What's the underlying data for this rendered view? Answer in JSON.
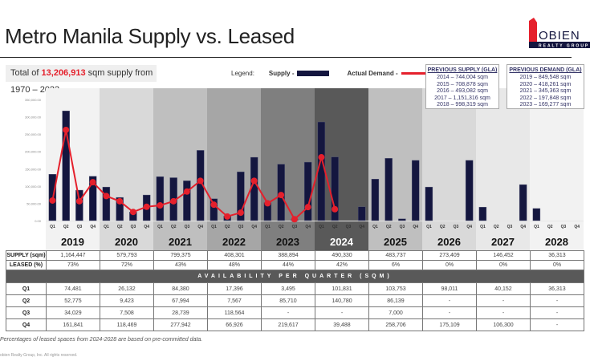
{
  "header": {
    "title": "Metro Manila Supply vs. Leased",
    "logo_text": "LOBIEN",
    "logo_sub": "REALTY GROUP"
  },
  "summary": {
    "prefix": "Total of ",
    "value": "13,206,913",
    "suffix": " sqm supply from 1970 – 2023."
  },
  "legend": {
    "label": "Legend:",
    "supply": "Supply -",
    "demand": "Actual Demand -"
  },
  "previous_supply": {
    "title": "PREVIOUS SUPPLY (GLA)",
    "items": [
      "2014 – 744,004 sqm",
      "2015 – 708,878 sqm",
      "2016 – 493,082 sqm",
      "2017 – 1,151,316 sqm",
      "2018 – 998,319 sqm"
    ]
  },
  "previous_demand": {
    "title": "PREVIOUS DEMAND (GLA)",
    "items": [
      "2019 – 849,548 sqm",
      "2020 – 418,261 sqm",
      "2021 – 345,363 sqm",
      "2022 – 197,848 sqm",
      "2023 – 169,277 sqm"
    ]
  },
  "colors": {
    "supply": "#14163f",
    "demand": "#e5202c",
    "band_colors": [
      "#f2f2f2",
      "#d9d9d9",
      "#bfbfbf",
      "#a6a6a6",
      "#7f7f7f",
      "#595959",
      "#bfbfbf",
      "#d9d9d9",
      "#e8e8e8",
      "#f2f2f2"
    ]
  },
  "chart_data": {
    "type": "bar+line",
    "years": [
      "2019",
      "2020",
      "2021",
      "2022",
      "2023",
      "2024",
      "2025",
      "2026",
      "2027",
      "2028"
    ],
    "quarters": [
      "Q1",
      "Q2",
      "Q3",
      "Q4"
    ],
    "ylim": [
      0,
      350000
    ],
    "yticks": [
      "0.00",
      "50,000.00",
      "100,000.00",
      "150,000.00",
      "200,000.00",
      "250,000.00",
      "300,000.00",
      "350,000.00"
    ],
    "series": [
      {
        "name": "Supply",
        "type": "bar",
        "values": [
          134000,
          317000,
          88000,
          128000,
          97000,
          67000,
          25000,
          74000,
          127000,
          124000,
          115000,
          203000,
          63000,
          13000,
          141000,
          183000,
          52000,
          163000,
          3000,
          169000,
          285000,
          184000,
          0,
          40000,
          120000,
          180000,
          5000,
          174000,
          97000,
          0,
          0,
          174000,
          39000,
          0,
          0,
          104000,
          35000,
          0,
          0,
          0
        ]
      },
      {
        "name": "Actual Demand",
        "type": "line",
        "values": [
          58000,
          262000,
          56000,
          111000,
          71000,
          56000,
          25000,
          40000,
          44000,
          56000,
          84000,
          115000,
          46000,
          12000,
          23000,
          115000,
          50000,
          74000,
          4000,
          39000,
          183000,
          33000
        ]
      }
    ]
  },
  "table": {
    "supply_label": "SUPPLY (sqm)",
    "leased_label": "LEASED (%)",
    "supply": [
      "1,164,447",
      "579,793",
      "799,375",
      "408,301",
      "388,894",
      "490,330",
      "483,737",
      "273,409",
      "146,452",
      "36,313"
    ],
    "leased": [
      "73%",
      "72%",
      "43%",
      "48%",
      "44%",
      "42%",
      "6%",
      "0%",
      "0%",
      "0%"
    ],
    "band": "AVAILABILITY PER QUARTER (SQM)",
    "rows": [
      {
        "label": "Q1",
        "values": [
          "74,481",
          "26,132",
          "84,380",
          "17,396",
          "3,495",
          "101,831",
          "103,753",
          "98,011",
          "40,152",
          "36,313"
        ]
      },
      {
        "label": "Q2",
        "values": [
          "52,775",
          "9,423",
          "67,994",
          "7,567",
          "85,710",
          "140,780",
          "86,139",
          "-",
          "-",
          "-"
        ]
      },
      {
        "label": "Q3",
        "values": [
          "34,029",
          "7,508",
          "28,739",
          "118,564",
          "-",
          "-",
          "7,000",
          "-",
          "-",
          "-"
        ]
      },
      {
        "label": "Q4",
        "values": [
          "161,841",
          "118,469",
          "277,942",
          "66,926",
          "219,617",
          "39,488",
          "258,706",
          "175,109",
          "106,300",
          "-"
        ]
      }
    ]
  },
  "footer": {
    "note": "Percentages of leased spaces from 2024-2028 are based on pre-committed data.",
    "copyright": "obien Realty Group, Inc. All rights reserved."
  }
}
